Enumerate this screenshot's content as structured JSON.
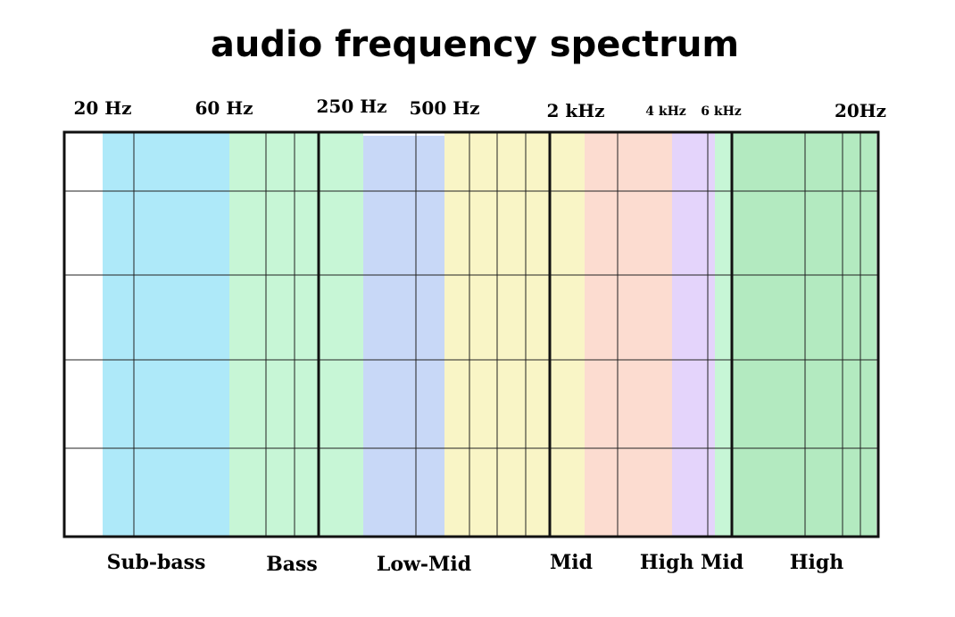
{
  "header": {
    "title": "audio frequency spectrum"
  },
  "frequency_labels": [
    "20 Hz",
    "60 Hz",
    "250 Hz",
    "500 Hz",
    "2 kHz",
    "4 kHz",
    "6 kHz",
    "20Hz"
  ],
  "band_labels": [
    "Sub-bass",
    "Bass",
    "Low-Mid",
    "Mid",
    "High Mid",
    "High"
  ]
}
